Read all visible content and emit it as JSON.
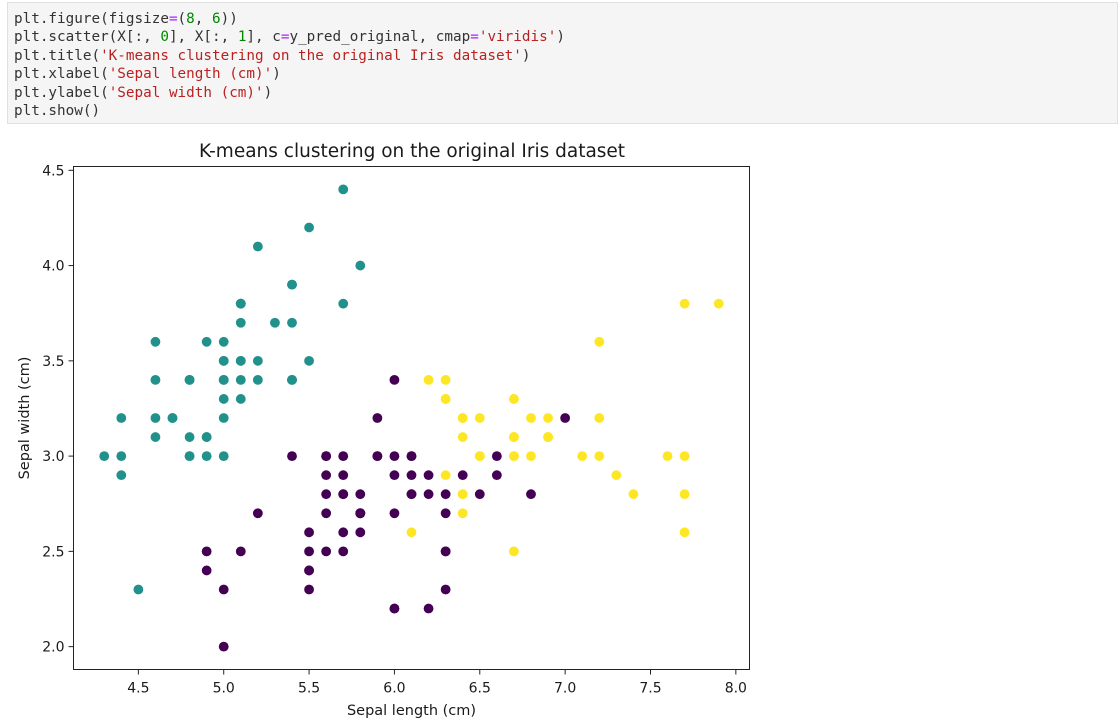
{
  "code_cell": {
    "lines": [
      [
        {
          "t": "plt.figure(figsize",
          "c": "#333333"
        },
        {
          "t": "=",
          "c": "#aa22ff"
        },
        {
          "t": "(",
          "c": "#333333"
        },
        {
          "t": "8",
          "c": "#008800"
        },
        {
          "t": ", ",
          "c": "#333333"
        },
        {
          "t": "6",
          "c": "#008800"
        },
        {
          "t": "))",
          "c": "#333333"
        }
      ],
      [
        {
          "t": "plt.scatter(X[:, ",
          "c": "#333333"
        },
        {
          "t": "0",
          "c": "#008800"
        },
        {
          "t": "], X[:, ",
          "c": "#333333"
        },
        {
          "t": "1",
          "c": "#008800"
        },
        {
          "t": "], c",
          "c": "#333333"
        },
        {
          "t": "=",
          "c": "#aa22ff"
        },
        {
          "t": "y_pred_original, cmap",
          "c": "#333333"
        },
        {
          "t": "=",
          "c": "#aa22ff"
        },
        {
          "t": "'viridis'",
          "c": "#ba2121"
        },
        {
          "t": ")",
          "c": "#333333"
        }
      ],
      [
        {
          "t": "plt.title(",
          "c": "#333333"
        },
        {
          "t": "'K-means clustering on the original Iris dataset'",
          "c": "#ba2121"
        },
        {
          "t": ")",
          "c": "#333333"
        }
      ],
      [
        {
          "t": "plt.xlabel(",
          "c": "#333333"
        },
        {
          "t": "'Sepal length (cm)'",
          "c": "#ba2121"
        },
        {
          "t": ")",
          "c": "#333333"
        }
      ],
      [
        {
          "t": "plt.ylabel(",
          "c": "#333333"
        },
        {
          "t": "'Sepal width (cm)'",
          "c": "#ba2121"
        },
        {
          "t": ")",
          "c": "#333333"
        }
      ],
      [
        {
          "t": "plt.show()",
          "c": "#333333"
        }
      ]
    ]
  },
  "chart_data": {
    "type": "scatter",
    "title": "K-means clustering on the original Iris dataset",
    "xlabel": "Sepal length (cm)",
    "ylabel": "Sepal width (cm)",
    "xlim": [
      4.12,
      8.08
    ],
    "ylim": [
      1.88,
      4.52
    ],
    "xticks": [
      4.5,
      5.0,
      5.5,
      6.0,
      6.5,
      7.0,
      7.5,
      8.0
    ],
    "xtick_labels": [
      "4.5",
      "5.0",
      "5.5",
      "6.0",
      "6.5",
      "7.0",
      "7.5",
      "8.0"
    ],
    "yticks": [
      2.0,
      2.5,
      3.0,
      3.5,
      4.0,
      4.5
    ],
    "ytick_labels": [
      "2.0",
      "2.5",
      "3.0",
      "3.5",
      "4.0",
      "4.5"
    ],
    "grid": false,
    "colormap": "viridis",
    "cluster_colors": {
      "0": "#440154",
      "1": "#21918c",
      "2": "#fde725"
    },
    "points": [
      [
        5.1,
        3.5,
        1
      ],
      [
        4.9,
        3.0,
        1
      ],
      [
        4.7,
        3.2,
        1
      ],
      [
        4.6,
        3.1,
        1
      ],
      [
        5.0,
        3.6,
        1
      ],
      [
        5.4,
        3.9,
        1
      ],
      [
        4.6,
        3.4,
        1
      ],
      [
        5.0,
        3.4,
        1
      ],
      [
        4.4,
        2.9,
        1
      ],
      [
        4.9,
        3.1,
        1
      ],
      [
        5.4,
        3.7,
        1
      ],
      [
        4.8,
        3.4,
        1
      ],
      [
        4.8,
        3.0,
        1
      ],
      [
        4.3,
        3.0,
        1
      ],
      [
        5.8,
        4.0,
        1
      ],
      [
        5.7,
        4.4,
        1
      ],
      [
        5.4,
        3.9,
        1
      ],
      [
        5.1,
        3.5,
        1
      ],
      [
        5.7,
        3.8,
        1
      ],
      [
        5.1,
        3.8,
        1
      ],
      [
        5.4,
        3.4,
        1
      ],
      [
        5.1,
        3.7,
        1
      ],
      [
        4.6,
        3.6,
        1
      ],
      [
        5.1,
        3.3,
        1
      ],
      [
        4.8,
        3.4,
        1
      ],
      [
        5.0,
        3.0,
        1
      ],
      [
        5.0,
        3.4,
        1
      ],
      [
        5.2,
        3.5,
        1
      ],
      [
        5.2,
        3.4,
        1
      ],
      [
        4.7,
        3.2,
        1
      ],
      [
        4.8,
        3.1,
        1
      ],
      [
        5.4,
        3.4,
        1
      ],
      [
        5.2,
        4.1,
        1
      ],
      [
        5.5,
        4.2,
        1
      ],
      [
        4.9,
        3.1,
        1
      ],
      [
        5.0,
        3.2,
        1
      ],
      [
        5.5,
        3.5,
        1
      ],
      [
        4.9,
        3.6,
        1
      ],
      [
        4.4,
        3.0,
        1
      ],
      [
        5.1,
        3.4,
        1
      ],
      [
        5.0,
        3.5,
        1
      ],
      [
        4.5,
        2.3,
        1
      ],
      [
        4.4,
        3.2,
        1
      ],
      [
        5.0,
        3.5,
        1
      ],
      [
        5.1,
        3.8,
        1
      ],
      [
        4.8,
        3.0,
        1
      ],
      [
        5.1,
        3.8,
        1
      ],
      [
        4.6,
        3.2,
        1
      ],
      [
        5.3,
        3.7,
        1
      ],
      [
        5.0,
        3.3,
        1
      ],
      [
        7.0,
        3.2,
        0
      ],
      [
        6.4,
        3.2,
        2
      ],
      [
        6.9,
        3.1,
        2
      ],
      [
        5.5,
        2.3,
        0
      ],
      [
        6.5,
        2.8,
        0
      ],
      [
        5.7,
        2.8,
        0
      ],
      [
        6.3,
        3.3,
        2
      ],
      [
        4.9,
        2.4,
        0
      ],
      [
        6.6,
        2.9,
        0
      ],
      [
        5.2,
        2.7,
        0
      ],
      [
        5.0,
        2.0,
        0
      ],
      [
        5.9,
        3.0,
        0
      ],
      [
        6.0,
        2.2,
        0
      ],
      [
        6.1,
        2.9,
        0
      ],
      [
        5.6,
        2.9,
        0
      ],
      [
        6.7,
        3.1,
        2
      ],
      [
        5.6,
        3.0,
        0
      ],
      [
        5.8,
        2.7,
        0
      ],
      [
        6.2,
        2.2,
        0
      ],
      [
        5.6,
        2.5,
        0
      ],
      [
        5.9,
        3.2,
        0
      ],
      [
        6.1,
        2.8,
        0
      ],
      [
        6.3,
        2.5,
        0
      ],
      [
        6.1,
        2.8,
        0
      ],
      [
        6.4,
        2.9,
        0
      ],
      [
        6.6,
        3.0,
        0
      ],
      [
        6.8,
        2.8,
        0
      ],
      [
        6.7,
        3.0,
        2
      ],
      [
        6.0,
        2.9,
        0
      ],
      [
        5.7,
        2.6,
        0
      ],
      [
        5.5,
        2.4,
        0
      ],
      [
        5.5,
        2.4,
        0
      ],
      [
        5.8,
        2.7,
        0
      ],
      [
        6.0,
        2.7,
        0
      ],
      [
        5.4,
        3.0,
        0
      ],
      [
        6.0,
        3.4,
        0
      ],
      [
        6.7,
        3.1,
        2
      ],
      [
        6.3,
        2.3,
        0
      ],
      [
        5.6,
        3.0,
        0
      ],
      [
        5.5,
        2.5,
        0
      ],
      [
        5.5,
        2.6,
        0
      ],
      [
        6.1,
        3.0,
        0
      ],
      [
        5.8,
        2.6,
        0
      ],
      [
        5.0,
        2.3,
        0
      ],
      [
        5.6,
        2.7,
        0
      ],
      [
        5.7,
        3.0,
        0
      ],
      [
        5.7,
        2.9,
        0
      ],
      [
        6.2,
        2.9,
        0
      ],
      [
        5.1,
        2.5,
        0
      ],
      [
        5.7,
        2.8,
        0
      ],
      [
        6.3,
        3.3,
        2
      ],
      [
        5.8,
        2.7,
        0
      ],
      [
        7.1,
        3.0,
        2
      ],
      [
        6.3,
        2.9,
        2
      ],
      [
        6.5,
        3.0,
        2
      ],
      [
        7.6,
        3.0,
        2
      ],
      [
        4.9,
        2.5,
        0
      ],
      [
        7.3,
        2.9,
        2
      ],
      [
        6.7,
        2.5,
        2
      ],
      [
        7.2,
        3.6,
        2
      ],
      [
        6.5,
        3.2,
        2
      ],
      [
        6.4,
        2.7,
        2
      ],
      [
        6.8,
        3.0,
        2
      ],
      [
        5.7,
        2.5,
        0
      ],
      [
        5.8,
        2.8,
        0
      ],
      [
        6.4,
        3.2,
        2
      ],
      [
        6.5,
        3.0,
        2
      ],
      [
        7.7,
        3.8,
        2
      ],
      [
        7.7,
        2.6,
        2
      ],
      [
        6.0,
        2.2,
        0
      ],
      [
        6.9,
        3.2,
        2
      ],
      [
        5.6,
        2.8,
        0
      ],
      [
        7.7,
        2.8,
        2
      ],
      [
        6.3,
        2.7,
        0
      ],
      [
        6.7,
        3.3,
        2
      ],
      [
        7.2,
        3.2,
        2
      ],
      [
        6.2,
        2.8,
        0
      ],
      [
        6.1,
        3.0,
        0
      ],
      [
        6.4,
        2.8,
        2
      ],
      [
        7.2,
        3.0,
        2
      ],
      [
        7.4,
        2.8,
        2
      ],
      [
        7.9,
        3.8,
        2
      ],
      [
        6.4,
        2.8,
        2
      ],
      [
        6.3,
        2.8,
        0
      ],
      [
        6.1,
        2.6,
        2
      ],
      [
        7.7,
        3.0,
        2
      ],
      [
        6.3,
        3.4,
        2
      ],
      [
        6.4,
        3.1,
        2
      ],
      [
        6.0,
        3.0,
        0
      ],
      [
        6.9,
        3.1,
        2
      ],
      [
        6.7,
        3.1,
        2
      ],
      [
        6.9,
        3.1,
        2
      ],
      [
        5.8,
        2.7,
        0
      ],
      [
        6.8,
        3.2,
        2
      ],
      [
        6.7,
        3.3,
        2
      ],
      [
        6.7,
        3.0,
        2
      ],
      [
        6.3,
        2.5,
        0
      ],
      [
        6.5,
        3.0,
        2
      ],
      [
        6.2,
        3.4,
        2
      ],
      [
        5.9,
        3.0,
        0
      ]
    ]
  }
}
